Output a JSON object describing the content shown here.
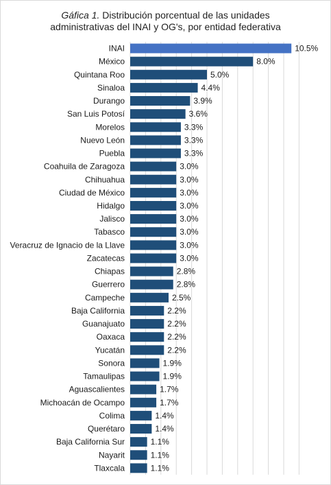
{
  "title": {
    "lead": "Gáfica 1.",
    "line1": " Distribución porcentual de las unidades",
    "line2": "administrativas del INAI y OG's, por entidad federativa"
  },
  "colors": {
    "highlight": "#4472c4",
    "bar": "#1f4e79",
    "grid": "#d9d9d9"
  },
  "chart_data": {
    "type": "bar",
    "orientation": "horizontal",
    "title": "Gáfica 1. Distribución porcentual de las unidades administrativas del INAI y OG's, por entidad federativa",
    "xlim": [
      0,
      11
    ],
    "grid": true,
    "highlight_category": "INAI",
    "categories": [
      "INAI",
      "México",
      "Quintana Roo",
      "Sinaloa",
      "Durango",
      "San Luis Potosí",
      "Morelos",
      "Nuevo León",
      "Puebla",
      "Coahuila de Zaragoza",
      "Chihuahua",
      "Ciudad de México",
      "Hidalgo",
      "Jalisco",
      "Tabasco",
      "Veracruz de Ignacio de la Llave",
      "Zacatecas",
      "Chiapas",
      "Guerrero",
      "Campeche",
      "Baja California",
      "Guanajuato",
      "Oaxaca",
      "Yucatán",
      "Sonora",
      "Tamaulipas",
      "Aguascalientes",
      "Michoacán de Ocampo",
      "Colima",
      "Querétaro",
      "Baja California Sur",
      "Nayarit",
      "Tlaxcala"
    ],
    "values": [
      10.5,
      8.0,
      5.0,
      4.4,
      3.9,
      3.6,
      3.3,
      3.3,
      3.3,
      3.0,
      3.0,
      3.0,
      3.0,
      3.0,
      3.0,
      3.0,
      3.0,
      2.8,
      2.8,
      2.5,
      2.2,
      2.2,
      2.2,
      2.2,
      1.9,
      1.9,
      1.7,
      1.7,
      1.4,
      1.4,
      1.1,
      1.1,
      1.1
    ],
    "value_labels": [
      "10.5%",
      "8.0%",
      "5.0%",
      "4.4%",
      "3.9%",
      "3.6%",
      "3.3%",
      "3.3%",
      "3.3%",
      "3.0%",
      "3.0%",
      "3.0%",
      "3.0%",
      "3.0%",
      "3.0%",
      "3.0%",
      "3.0%",
      "2.8%",
      "2.8%",
      "2.5%",
      "2.2%",
      "2.2%",
      "2.2%",
      "2.2%",
      "1.9%",
      "1.9%",
      "1.7%",
      "1.7%",
      "1.4%",
      "1.4%",
      "1.1%",
      "1.1%",
      "1.1%"
    ]
  }
}
